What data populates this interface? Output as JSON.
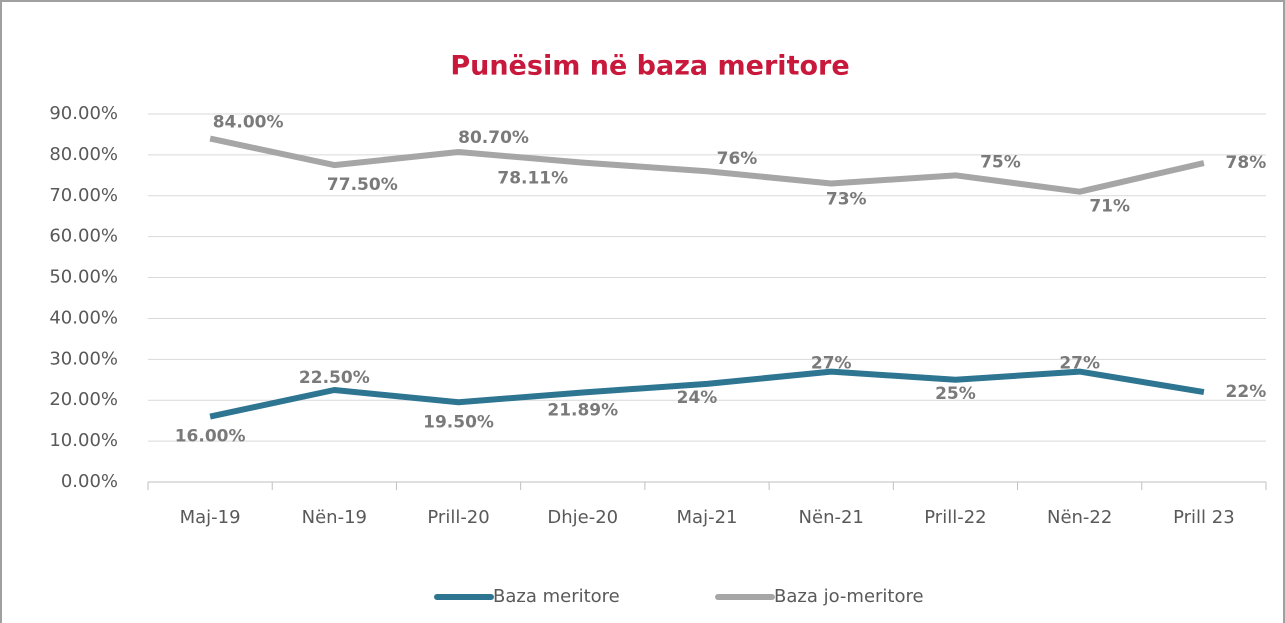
{
  "chart_data": {
    "type": "line",
    "title": "Punësim në baza meritore",
    "categories": [
      "Maj-19",
      "Nën-19",
      "Prill-20",
      "Dhje-20",
      "Maj-21",
      "Nën-21",
      "Prill-22",
      "Nën-22",
      "Prill 23"
    ],
    "series": [
      {
        "name": "Baza meritore",
        "color": "#2e7592",
        "values": [
          16,
          22.5,
          19.5,
          21.89,
          24,
          27,
          25,
          27,
          22
        ],
        "value_labels": [
          "16.00%",
          "22.50%",
          "19.50%",
          "21.89%",
          "24%",
          "27%",
          "25%",
          "27%",
          "22%"
        ]
      },
      {
        "name": "Baza jo-meritore",
        "color": "#a6a6a6",
        "values": [
          84,
          77.5,
          80.7,
          78.11,
          76,
          73,
          75,
          71,
          78
        ],
        "value_labels": [
          "84.00%",
          "77.50%",
          "80.70%",
          "78.11%",
          "76%",
          "73%",
          "75%",
          "71%",
          "78%"
        ]
      }
    ],
    "ylim": [
      0,
      90
    ],
    "yticks": [
      {
        "value": 0,
        "label": "0.00%"
      },
      {
        "value": 10,
        "label": "10.00%"
      },
      {
        "value": 20,
        "label": "20.00%"
      },
      {
        "value": 30,
        "label": "30.00%"
      },
      {
        "value": 40,
        "label": "40.00%"
      },
      {
        "value": 50,
        "label": "50.00%"
      },
      {
        "value": 60,
        "label": "60.00%"
      },
      {
        "value": 70,
        "label": "70.00%"
      },
      {
        "value": 80,
        "label": "80.00%"
      },
      {
        "value": 90,
        "label": "90.00%"
      }
    ],
    "grid": true,
    "legend": "bottom"
  }
}
